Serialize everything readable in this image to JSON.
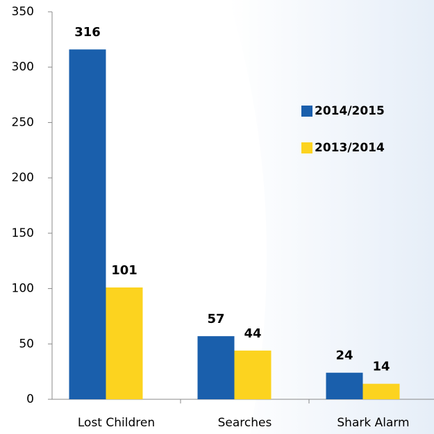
{
  "chart_data": {
    "type": "bar",
    "categories": [
      "Lost Children",
      "Searches",
      "Shark Alarm"
    ],
    "series": [
      {
        "name": "2014/2015",
        "color": "#1a5fac",
        "values": [
          316,
          57,
          24
        ]
      },
      {
        "name": "2013/2014",
        "color": "#fcd31f",
        "values": [
          101,
          44,
          14
        ]
      }
    ],
    "ylim": [
      0,
      350
    ],
    "yticks": [
      0,
      50,
      100,
      150,
      200,
      250,
      300,
      350
    ],
    "legend": "right"
  }
}
